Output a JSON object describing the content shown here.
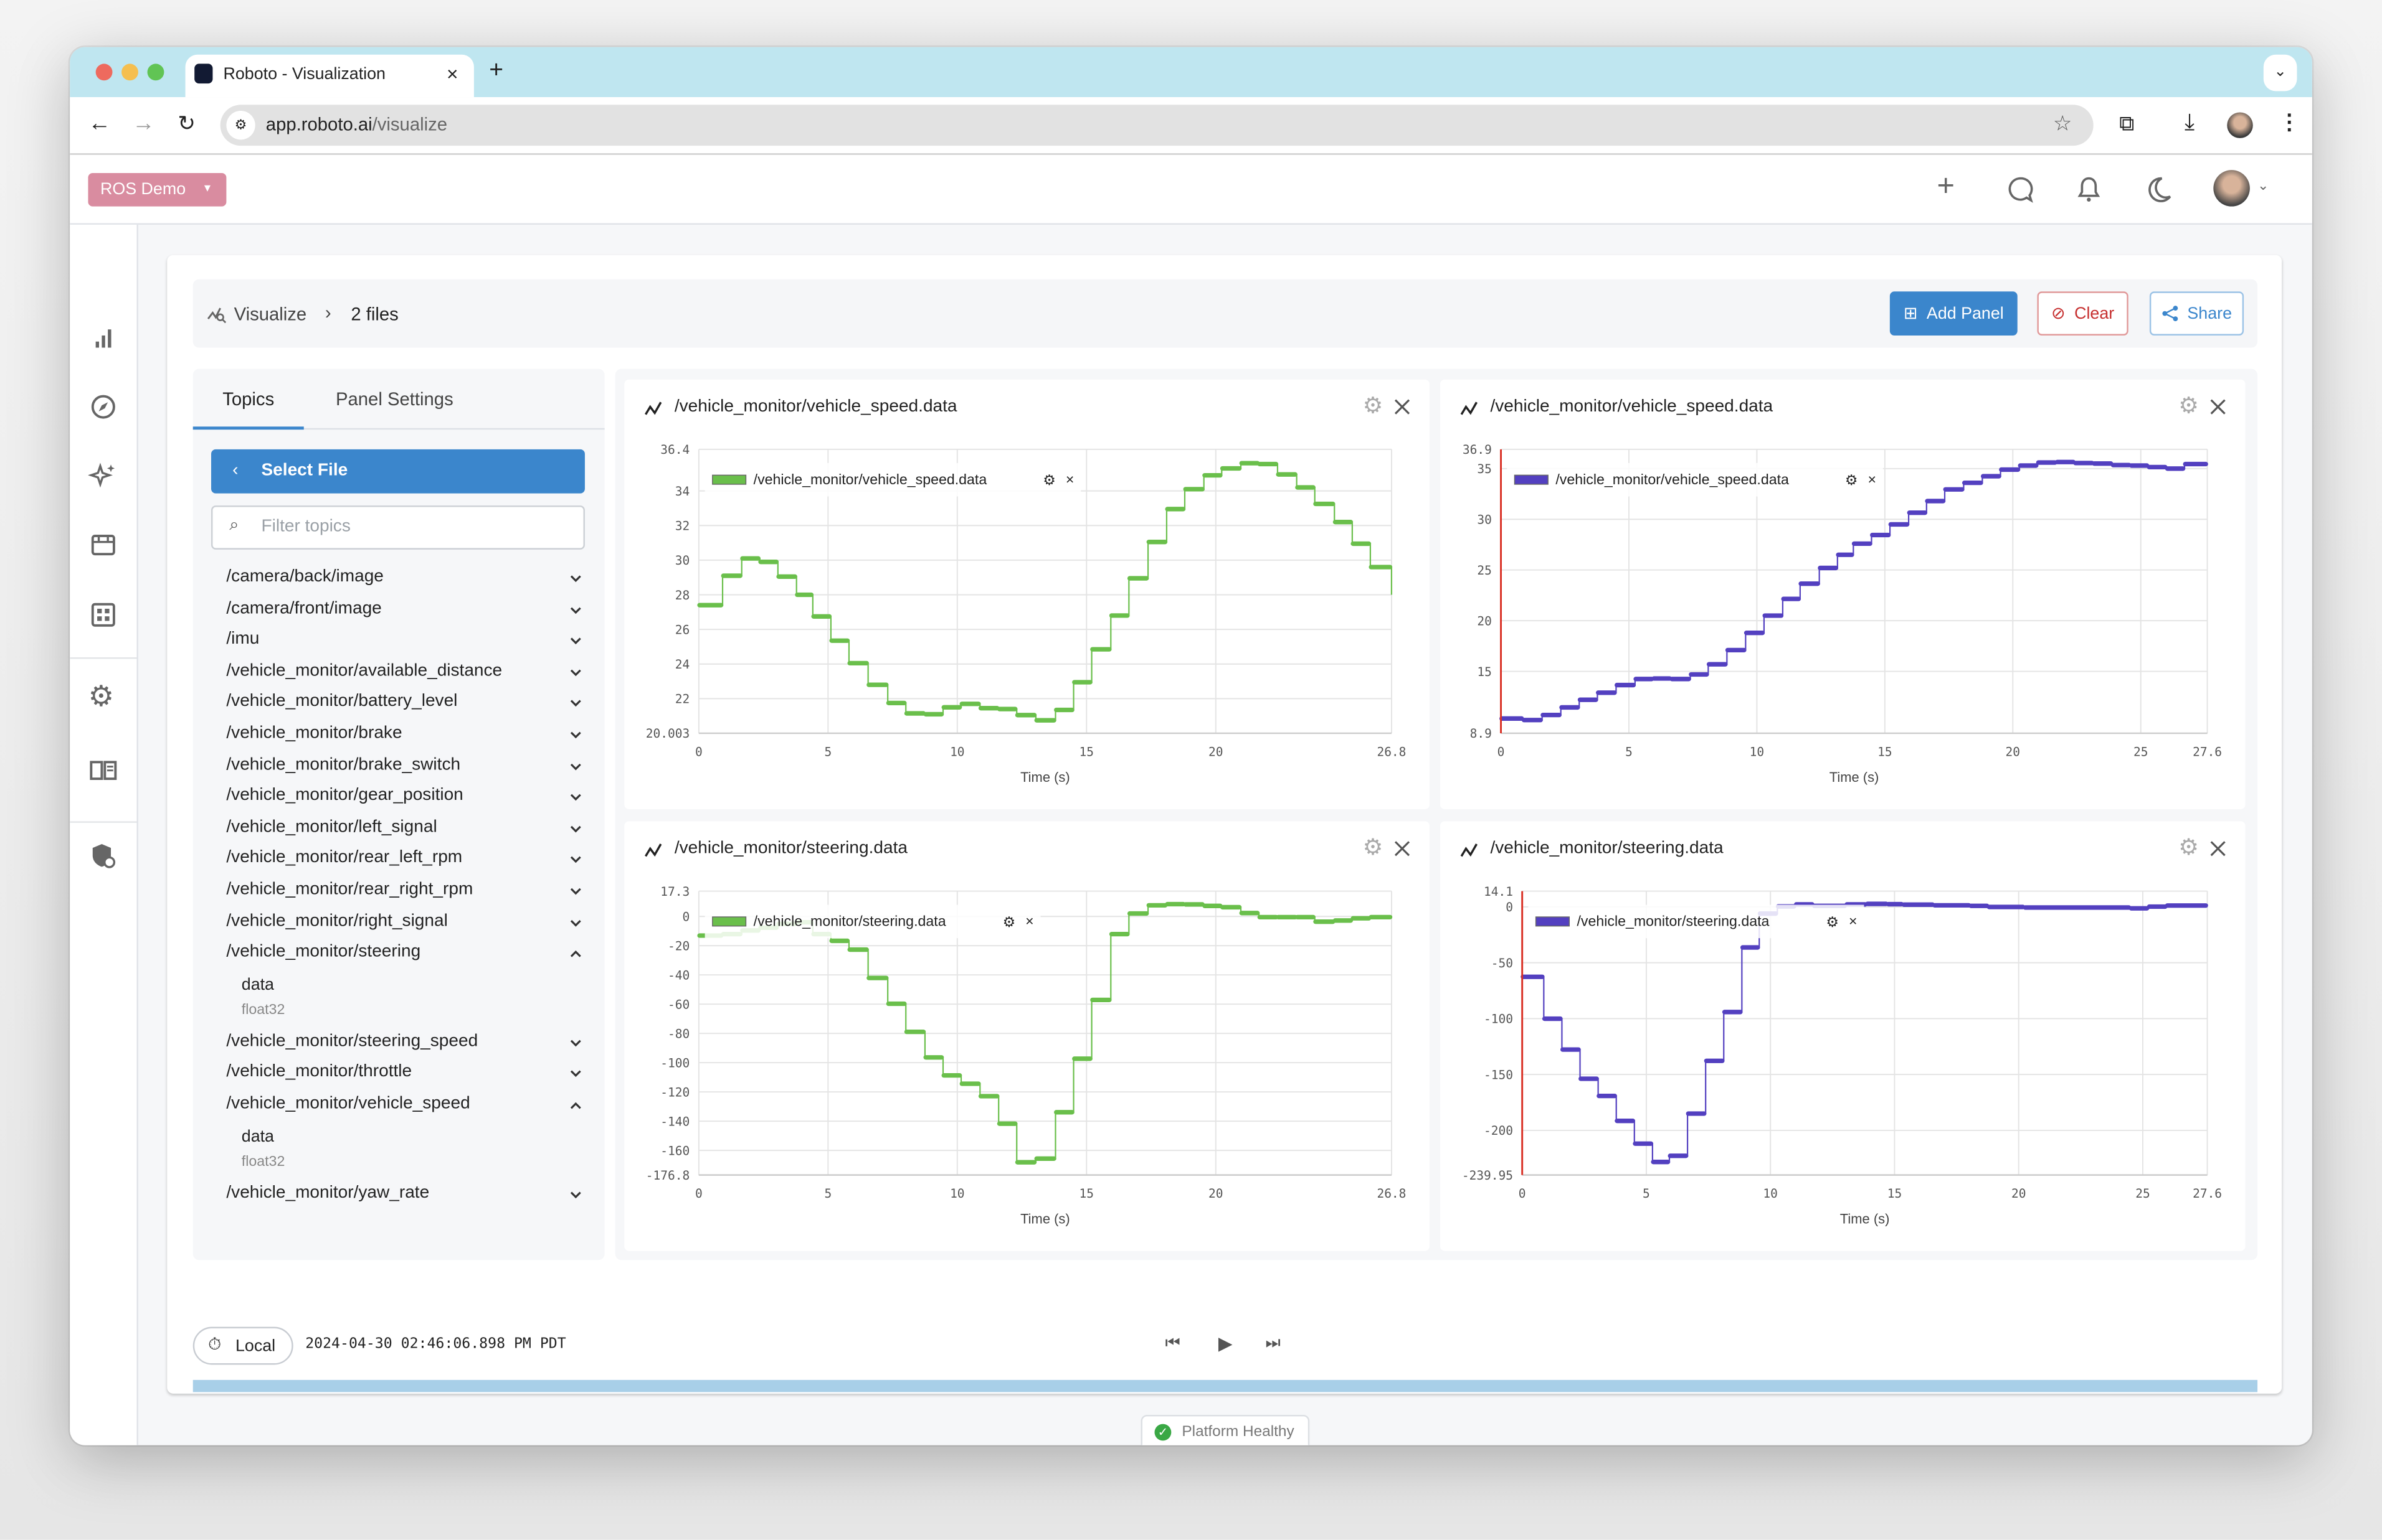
{
  "browser": {
    "tab_title": "Roboto - Visualization",
    "url_host": "app.roboto.ai",
    "url_path": "/visualize",
    "new_tab": "+",
    "close_tab": "×"
  },
  "header": {
    "org_label": "ROS Demo"
  },
  "breadcrumb": {
    "root": "Visualize",
    "current": "2 files"
  },
  "toolbar": {
    "add_panel": "Add Panel",
    "clear": "Clear",
    "share": "Share"
  },
  "left_panel": {
    "tabs": [
      {
        "label": "Topics",
        "active": true
      },
      {
        "label": "Panel Settings",
        "active": false
      }
    ],
    "select_file": "Select File",
    "filter_placeholder": "Filter topics",
    "topics": [
      {
        "name": "/camera/back/image",
        "expanded": false
      },
      {
        "name": "/camera/front/image",
        "expanded": false
      },
      {
        "name": "/imu",
        "expanded": false
      },
      {
        "name": "/vehicle_monitor/available_distance",
        "expanded": false
      },
      {
        "name": "/vehicle_monitor/battery_level",
        "expanded": false
      },
      {
        "name": "/vehicle_monitor/brake",
        "expanded": false
      },
      {
        "name": "/vehicle_monitor/brake_switch",
        "expanded": false
      },
      {
        "name": "/vehicle_monitor/gear_position",
        "expanded": false
      },
      {
        "name": "/vehicle_monitor/left_signal",
        "expanded": false
      },
      {
        "name": "/vehicle_monitor/rear_left_rpm",
        "expanded": false
      },
      {
        "name": "/vehicle_monitor/rear_right_rpm",
        "expanded": false
      },
      {
        "name": "/vehicle_monitor/right_signal",
        "expanded": false
      },
      {
        "name": "/vehicle_monitor/steering",
        "expanded": true,
        "fields": [
          {
            "name": "data",
            "type": "float32"
          }
        ]
      },
      {
        "name": "/vehicle_monitor/steering_speed",
        "expanded": false
      },
      {
        "name": "/vehicle_monitor/throttle",
        "expanded": false
      },
      {
        "name": "/vehicle_monitor/vehicle_speed",
        "expanded": true,
        "fields": [
          {
            "name": "data",
            "type": "float32"
          }
        ]
      },
      {
        "name": "/vehicle_monitor/yaw_rate",
        "expanded": false
      }
    ]
  },
  "playback": {
    "timezone_label": "Local",
    "timestamp": "2024-04-30 02:46:06.898 PM PDT",
    "progress": 1.0
  },
  "status": {
    "label": "Platform Healthy",
    "color": "#3aa845"
  },
  "colors": {
    "accent": "#3b86cc",
    "org": "#d98ca0",
    "clear": "#c62f2f",
    "green_series": "#6abf4b",
    "purple_series": "#5340c0",
    "cursor": "#d93025"
  },
  "chart_data": [
    {
      "type": "line",
      "title": "/vehicle_monitor/vehicle_speed.data",
      "xlabel": "Time (s)",
      "ylabel": "",
      "color": "#6abf4b",
      "xlim": [
        0,
        26.8
      ],
      "ylim": [
        20.003,
        36.4
      ],
      "xticks": [
        "0",
        "5",
        "10",
        "15",
        "20",
        "26.8"
      ],
      "yticks": [
        "20.003",
        "22",
        "24",
        "26",
        "28",
        "30",
        "32",
        "34",
        "36.4"
      ],
      "series": [
        {
          "name": "/vehicle_monitor/vehicle_speed.data",
          "points": [
            [
              0,
              27.4
            ],
            [
              0.92,
              29.1
            ],
            [
              1.66,
              30.1
            ],
            [
              2.36,
              29.9
            ],
            [
              3.06,
              29.05
            ],
            [
              3.78,
              28.0
            ],
            [
              4.41,
              26.75
            ],
            [
              5.11,
              25.35
            ],
            [
              5.81,
              24.05
            ],
            [
              6.55,
              22.8
            ],
            [
              7.31,
              21.75
            ],
            [
              8.01,
              21.15
            ],
            [
              8.75,
              21.1
            ],
            [
              9.45,
              21.5
            ],
            [
              10.15,
              21.7
            ],
            [
              10.88,
              21.45
            ],
            [
              11.6,
              21.4
            ],
            [
              12.3,
              21.05
            ],
            [
              13.04,
              20.75
            ],
            [
              13.8,
              21.35
            ],
            [
              14.5,
              22.95
            ],
            [
              15.2,
              24.85
            ],
            [
              15.94,
              26.8
            ],
            [
              16.64,
              28.95
            ],
            [
              17.38,
              31.05
            ],
            [
              18.1,
              32.95
            ],
            [
              18.8,
              34.1
            ],
            [
              19.54,
              34.9
            ],
            [
              20.23,
              35.3
            ],
            [
              20.97,
              35.6
            ],
            [
              21.67,
              35.55
            ],
            [
              22.39,
              34.95
            ],
            [
              23.13,
              34.2
            ],
            [
              23.83,
              33.25
            ],
            [
              24.59,
              32.2
            ],
            [
              25.28,
              30.95
            ],
            [
              25.98,
              29.6
            ],
            [
              26.8,
              28.0
            ]
          ]
        }
      ],
      "cursor": null,
      "grid": true,
      "legend": "top-left"
    },
    {
      "type": "line",
      "title": "/vehicle_monitor/vehicle_speed.data",
      "xlabel": "Time (s)",
      "ylabel": "",
      "color": "#5340c0",
      "xlim": [
        0,
        27.6
      ],
      "ylim": [
        8.9,
        36.9
      ],
      "xticks": [
        "0",
        "5",
        "10",
        "15",
        "20",
        "25",
        "27.6"
      ],
      "yticks": [
        "8.9",
        "15",
        "20",
        "25",
        "30",
        "35",
        "36.9"
      ],
      "series": [
        {
          "name": "/vehicle_monitor/vehicle_speed.data",
          "points": [
            [
              0,
              10.35
            ],
            [
              0.87,
              10.2
            ],
            [
              1.61,
              10.7
            ],
            [
              2.34,
              11.45
            ],
            [
              3.06,
              12.2
            ],
            [
              3.77,
              12.9
            ],
            [
              4.5,
              13.65
            ],
            [
              5.24,
              14.25
            ],
            [
              5.95,
              14.3
            ],
            [
              6.65,
              14.25
            ],
            [
              7.4,
              14.7
            ],
            [
              8.1,
              15.7
            ],
            [
              8.83,
              17.1
            ],
            [
              9.56,
              18.8
            ],
            [
              10.28,
              20.5
            ],
            [
              11.01,
              22.15
            ],
            [
              11.69,
              23.65
            ],
            [
              12.44,
              25.2
            ],
            [
              13.15,
              26.5
            ],
            [
              13.77,
              27.6
            ],
            [
              14.48,
              28.45
            ],
            [
              15.2,
              29.5
            ],
            [
              15.93,
              30.65
            ],
            [
              16.63,
              31.8
            ],
            [
              17.34,
              32.95
            ],
            [
              18.08,
              33.6
            ],
            [
              18.81,
              34.25
            ],
            [
              19.52,
              34.9
            ],
            [
              20.26,
              35.3
            ],
            [
              20.97,
              35.6
            ],
            [
              21.71,
              35.65
            ],
            [
              22.42,
              35.55
            ],
            [
              23.15,
              35.5
            ],
            [
              23.89,
              35.35
            ],
            [
              24.6,
              35.3
            ],
            [
              25.3,
              35.15
            ],
            [
              26.01,
              35.0
            ],
            [
              26.71,
              35.45
            ],
            [
              27.6,
              35.4
            ]
          ]
        }
      ],
      "cursor": 0,
      "grid": true,
      "legend": "top-left"
    },
    {
      "type": "line",
      "title": "/vehicle_monitor/steering.data",
      "xlabel": "Time (s)",
      "ylabel": "",
      "color": "#6abf4b",
      "xlim": [
        0,
        26.8
      ],
      "ylim": [
        -176.8,
        17.3
      ],
      "xticks": [
        "0",
        "5",
        "10",
        "15",
        "20",
        "26.8"
      ],
      "yticks": [
        "-176.8",
        "-160",
        "-140",
        "-120",
        "-100",
        "-80",
        "-60",
        "-40",
        "-20",
        "0",
        "17.3"
      ],
      "series": [
        {
          "name": "/vehicle_monitor/steering.data",
          "points": [
            [
              0,
              -13.1
            ],
            [
              0.92,
              -12.1
            ],
            [
              1.66,
              -9.6
            ],
            [
              2.36,
              -7.7
            ],
            [
              3.06,
              -5.1
            ],
            [
              3.78,
              -4.0
            ],
            [
              4.41,
              -12.1
            ],
            [
              5.11,
              -16.7
            ],
            [
              5.81,
              -22.7
            ],
            [
              6.55,
              -42.1
            ],
            [
              7.31,
              -59.7
            ],
            [
              8.01,
              -78.9
            ],
            [
              8.75,
              -96.4
            ],
            [
              9.45,
              -108.7
            ],
            [
              10.15,
              -114.4
            ],
            [
              10.88,
              -122.9
            ],
            [
              11.6,
              -141.7
            ],
            [
              12.3,
              -168.1
            ],
            [
              13.04,
              -165.6
            ],
            [
              13.8,
              -133.9
            ],
            [
              14.5,
              -97.3
            ],
            [
              15.2,
              -57.1
            ],
            [
              15.94,
              -12.1
            ],
            [
              16.64,
              2.0
            ],
            [
              17.38,
              7.6
            ],
            [
              18.1,
              8.4
            ],
            [
              18.8,
              8.2
            ],
            [
              19.54,
              7.2
            ],
            [
              20.23,
              6.3
            ],
            [
              20.97,
              2.3
            ],
            [
              21.67,
              -0.5
            ],
            [
              22.39,
              -0.5
            ],
            [
              23.13,
              -0.5
            ],
            [
              23.83,
              -3.6
            ],
            [
              24.59,
              -2.8
            ],
            [
              25.28,
              -1.3
            ],
            [
              25.98,
              -0.5
            ],
            [
              26.8,
              0.4
            ]
          ]
        }
      ],
      "cursor": null,
      "grid": true,
      "legend": "top-left"
    },
    {
      "type": "line",
      "title": "/vehicle_monitor/steering.data",
      "xlabel": "Time (s)",
      "ylabel": "",
      "color": "#5340c0",
      "xlim": [
        0,
        27.6
      ],
      "ylim": [
        -239.95,
        14.1
      ],
      "xticks": [
        "0",
        "5",
        "10",
        "15",
        "20",
        "25",
        "27.6"
      ],
      "yticks": [
        "-239.95",
        "-200",
        "-150",
        "-100",
        "-50",
        "0",
        "14.1"
      ],
      "series": [
        {
          "name": "/vehicle_monitor/steering.data",
          "points": [
            [
              0,
              -62.6
            ],
            [
              0.87,
              -100.1
            ],
            [
              1.6,
              -127.7
            ],
            [
              2.33,
              -153.8
            ],
            [
              3.06,
              -169.2
            ],
            [
              3.79,
              -191.5
            ],
            [
              4.52,
              -211.9
            ],
            [
              5.25,
              -228.3
            ],
            [
              5.93,
              -222.8
            ],
            [
              6.66,
              -185.0
            ],
            [
              7.39,
              -137.8
            ],
            [
              8.12,
              -94.1
            ],
            [
              8.85,
              -36.3
            ],
            [
              9.55,
              -6.0
            ],
            [
              10.28,
              0.4
            ],
            [
              11.01,
              2.2
            ],
            [
              11.74,
              0.9
            ],
            [
              13.05,
              2.2
            ],
            [
              13.88,
              2.7
            ],
            [
              14.72,
              2.4
            ],
            [
              15.34,
              2.0
            ],
            [
              16.59,
              1.4
            ],
            [
              18.05,
              0.9
            ],
            [
              18.78,
              -0.1
            ],
            [
              20.23,
              -0.6
            ],
            [
              24.5,
              -1.3
            ],
            [
              25.23,
              0.2
            ],
            [
              25.96,
              1.2
            ],
            [
              27.6,
              1.2
            ]
          ]
        }
      ],
      "cursor": 0,
      "grid": true,
      "legend": "top-left"
    }
  ]
}
